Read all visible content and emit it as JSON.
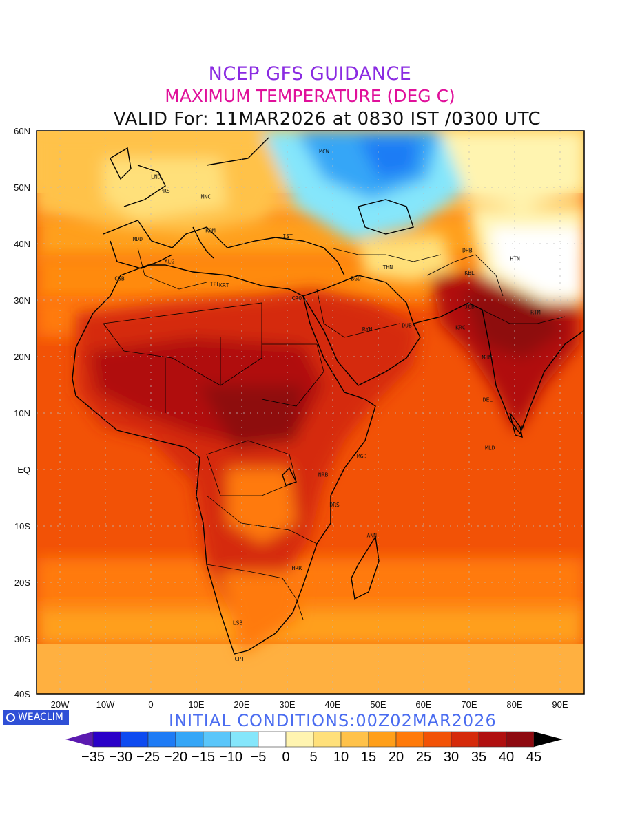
{
  "header": {
    "line1": "NCEP GFS GUIDANCE",
    "line2": "MAXIMUM TEMPERATURE (DEG C)",
    "line3": "VALID For: 11MAR2026 at 0830 IST /0300 UTC"
  },
  "axes": {
    "lat_labels": [
      "60N",
      "50N",
      "40N",
      "30N",
      "20N",
      "10N",
      "EQ",
      "10S",
      "20S",
      "30S",
      "40S"
    ],
    "lon_labels": [
      "20W",
      "10W",
      "0",
      "10E",
      "20E",
      "30E",
      "40E",
      "50E",
      "60E",
      "70E",
      "80E",
      "90E"
    ]
  },
  "footer": {
    "initial_conditions": "INITIAL CONDITIONS:00Z02MAR2026",
    "brand": "WEACLIM"
  },
  "colorbar": {
    "ticks": [
      "−35",
      "−30",
      "−25",
      "−20",
      "−15",
      "−10",
      "−5",
      "0",
      "5",
      "10",
      "15",
      "20",
      "25",
      "30",
      "35",
      "40",
      "45"
    ],
    "colors": [
      "#2a00c8",
      "#0d4af0",
      "#1e7bf5",
      "#35a6f7",
      "#5ac6fa",
      "#85e6fb",
      "#ffffff",
      "#fff4b0",
      "#ffe07a",
      "#ffc24a",
      "#ff9f1a",
      "#ff7a0a",
      "#f25206",
      "#d52a0a",
      "#b00f0f",
      "#8e0a10"
    ],
    "below_color": "#5b1ab0",
    "above_color": "#000000"
  },
  "cities": [
    {
      "code": "MCW",
      "lon": 37,
      "lat": 56
    },
    {
      "code": "LND",
      "lon": 0,
      "lat": 51.5
    },
    {
      "code": "PRS",
      "lon": 2,
      "lat": 49
    },
    {
      "code": "MNC",
      "lon": 11,
      "lat": 48
    },
    {
      "code": "ROM",
      "lon": 12,
      "lat": 42
    },
    {
      "code": "MDD",
      "lon": -4,
      "lat": 40.5
    },
    {
      "code": "IST",
      "lon": 29,
      "lat": 41
    },
    {
      "code": "ALG",
      "lon": 3,
      "lat": 36.5
    },
    {
      "code": "CSB",
      "lon": -8,
      "lat": 33.5
    },
    {
      "code": "TPL",
      "lon": 13,
      "lat": 32.5
    },
    {
      "code": "KRT",
      "lon": 15,
      "lat": 32.3
    },
    {
      "code": "CRO",
      "lon": 31,
      "lat": 30
    },
    {
      "code": "BGD",
      "lon": 44,
      "lat": 33.5
    },
    {
      "code": "THN",
      "lon": 51,
      "lat": 35.5
    },
    {
      "code": "DHB",
      "lon": 68.5,
      "lat": 38.5
    },
    {
      "code": "HTN",
      "lon": 79,
      "lat": 37
    },
    {
      "code": "KBL",
      "lon": 69,
      "lat": 34.5
    },
    {
      "code": "RYH",
      "lon": 46.5,
      "lat": 24.5
    },
    {
      "code": "DUB",
      "lon": 55.2,
      "lat": 25.2
    },
    {
      "code": "KRC",
      "lon": 67,
      "lat": 24.8
    },
    {
      "code": "JCB",
      "lon": 69,
      "lat": 28.5
    },
    {
      "code": "RTM",
      "lon": 83.5,
      "lat": 27.5
    },
    {
      "code": "MUM",
      "lon": 72.8,
      "lat": 19.5
    },
    {
      "code": "DEL",
      "lon": 73,
      "lat": 12
    },
    {
      "code": "CLM",
      "lon": 80,
      "lat": 7
    },
    {
      "code": "MLD",
      "lon": 73.5,
      "lat": 3.5
    },
    {
      "code": "MGD",
      "lon": 45.3,
      "lat": 2
    },
    {
      "code": "NRB",
      "lon": 36.8,
      "lat": -1.3
    },
    {
      "code": "DRS",
      "lon": 39.3,
      "lat": -6.6
    },
    {
      "code": "ANN",
      "lon": 47.5,
      "lat": -12
    },
    {
      "code": "HRR",
      "lon": 31,
      "lat": -17.8
    },
    {
      "code": "LSB",
      "lon": 18,
      "lat": -27.5
    },
    {
      "code": "CPT",
      "lon": 18.4,
      "lat": -33.9
    }
  ]
}
